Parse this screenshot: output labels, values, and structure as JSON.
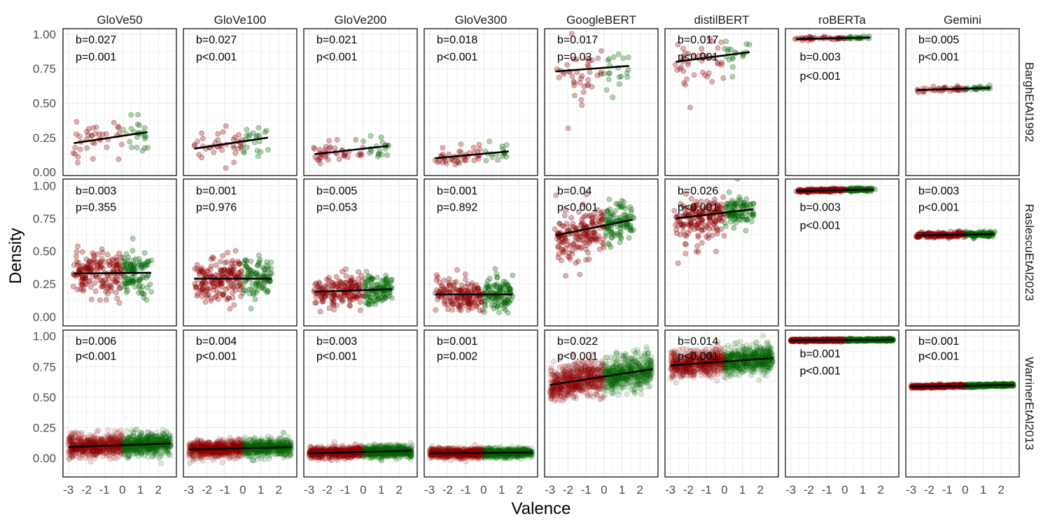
{
  "chart_data": {
    "type": "scatter",
    "xlabel": "Valence",
    "ylabel": "Density",
    "xlim": [
      -3.3,
      3.0
    ],
    "x_ticks": [
      -3,
      -2,
      -1,
      0,
      1,
      2
    ],
    "y_ticks": [
      0.0,
      0.25,
      0.5,
      0.75,
      1.0
    ],
    "y_tick_labels": [
      "0.00",
      "0.25",
      "0.50",
      "0.75",
      "1.00"
    ],
    "grid": true,
    "colors": {
      "negative": "#8b0000",
      "positive": "#006400",
      "fit_line": "#000000"
    },
    "columns": [
      "GloVe50",
      "GloVe100",
      "GloVe200",
      "GloVe300",
      "GoogleBERT",
      "distilBERT",
      "roBERTa",
      "Gemini"
    ],
    "rows": [
      {
        "name": "BarghEtAl1992",
        "ylim": [
          -0.025,
          1.04
        ],
        "panels": [
          {
            "b": "b=0.027",
            "p": "p=0.001",
            "fit": {
              "x": [
                -2.7,
                1.4
              ],
              "y": [
                0.21,
                0.29
              ]
            }
          },
          {
            "b": "b=0.027",
            "p": "p<0.001",
            "fit": {
              "x": [
                -2.7,
                1.4
              ],
              "y": [
                0.17,
                0.25
              ]
            }
          },
          {
            "b": "b=0.021",
            "p": "p<0.001",
            "fit": {
              "x": [
                -2.7,
                1.4
              ],
              "y": [
                0.13,
                0.19
              ]
            }
          },
          {
            "b": "b=0.018",
            "p": "p<0.001",
            "fit": {
              "x": [
                -2.7,
                1.4
              ],
              "y": [
                0.1,
                0.15
              ]
            }
          },
          {
            "b": "b=0.017",
            "p": "p=0.03",
            "fit": {
              "x": [
                -2.7,
                1.4
              ],
              "y": [
                0.73,
                0.77
              ]
            }
          },
          {
            "b": "b=0.017",
            "p": "p<0.001",
            "fit": {
              "x": [
                -2.7,
                1.4
              ],
              "y": [
                0.8,
                0.87
              ]
            }
          },
          {
            "b": "b=0.003",
            "p": "p<0.001",
            "fit": {
              "x": [
                -2.7,
                1.4
              ],
              "y": [
                0.965,
                0.975
              ]
            }
          },
          {
            "b": "b=0.005",
            "p": "p<0.001",
            "fit": {
              "x": [
                -2.7,
                1.4
              ],
              "y": [
                0.595,
                0.61
              ]
            }
          }
        ]
      },
      {
        "name": "RaslescuEtAl2023",
        "ylim": [
          -0.07,
          1.05
        ],
        "panels": [
          {
            "b": "b=0.003",
            "p": "p=0.355",
            "fit": {
              "x": [
                -2.7,
                1.6
              ],
              "y": [
                0.33,
                0.335
              ]
            }
          },
          {
            "b": "b=0.001",
            "p": "p=0.976",
            "fit": {
              "x": [
                -2.7,
                1.6
              ],
              "y": [
                0.29,
                0.29
              ]
            }
          },
          {
            "b": "b=0.005",
            "p": "p=0.053",
            "fit": {
              "x": [
                -2.7,
                1.6
              ],
              "y": [
                0.19,
                0.21
              ]
            }
          },
          {
            "b": "b=0.001",
            "p": "p=0.892",
            "fit": {
              "x": [
                -2.7,
                1.6
              ],
              "y": [
                0.17,
                0.17
              ]
            }
          },
          {
            "b": "b=0.04",
            "p": "p<0.001",
            "fit": {
              "x": [
                -2.7,
                1.6
              ],
              "y": [
                0.62,
                0.74
              ]
            }
          },
          {
            "b": "b=0.026",
            "p": "p<0.001",
            "fit": {
              "x": [
                -2.7,
                1.6
              ],
              "y": [
                0.75,
                0.82
              ]
            }
          },
          {
            "b": "b=0.003",
            "p": "p<0.001",
            "fit": {
              "x": [
                -2.7,
                1.6
              ],
              "y": [
                0.96,
                0.97
              ]
            }
          },
          {
            "b": "b=0.003",
            "p": "p<0.001",
            "fit": {
              "x": [
                -2.7,
                1.6
              ],
              "y": [
                0.62,
                0.63
              ]
            }
          }
        ]
      },
      {
        "name": "WarrinerEtAl2013",
        "ylim": [
          -0.155,
          1.05
        ],
        "panels": [
          {
            "b": "b=0.006",
            "p": "p<0.001",
            "fit": {
              "x": [
                -3.0,
                2.7
              ],
              "y": [
                0.09,
                0.12
              ]
            }
          },
          {
            "b": "b=0.004",
            "p": "p<0.001",
            "fit": {
              "x": [
                -3.0,
                2.7
              ],
              "y": [
                0.07,
                0.09
              ]
            }
          },
          {
            "b": "b=0.003",
            "p": "p<0.001",
            "fit": {
              "x": [
                -3.0,
                2.7
              ],
              "y": [
                0.04,
                0.06
              ]
            }
          },
          {
            "b": "b=0.001",
            "p": "p=0.002",
            "fit": {
              "x": [
                -3.0,
                2.7
              ],
              "y": [
                0.04,
                0.045
              ]
            }
          },
          {
            "b": "b=0.022",
            "p": "p<0.001",
            "fit": {
              "x": [
                -3.0,
                2.7
              ],
              "y": [
                0.6,
                0.73
              ]
            }
          },
          {
            "b": "b=0.014",
            "p": "p<0.001",
            "fit": {
              "x": [
                -3.0,
                2.7
              ],
              "y": [
                0.76,
                0.82
              ]
            }
          },
          {
            "b": "b=0.001",
            "p": "p<0.001",
            "fit": {
              "x": [
                -3.0,
                2.7
              ],
              "y": [
                0.965,
                0.97
              ]
            }
          },
          {
            "b": "b=0.001",
            "p": "p<0.001",
            "fit": {
              "x": [
                -3.0,
                2.7
              ],
              "y": [
                0.585,
                0.6
              ]
            }
          }
        ]
      }
    ]
  }
}
